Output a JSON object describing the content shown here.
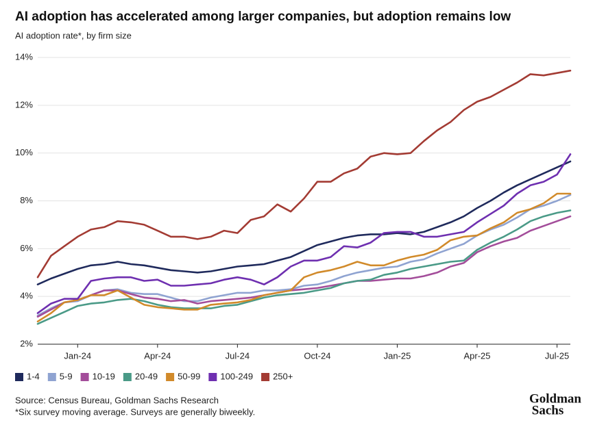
{
  "chart_data": {
    "type": "line",
    "title": "AI adoption has accelerated among larger companies, but adoption remains low",
    "subtitle": "AI adoption rate*, by firm size",
    "categories": [
      null,
      null,
      null,
      "Jan-24",
      null,
      null,
      null,
      null,
      null,
      "Apr-24",
      null,
      null,
      null,
      null,
      null,
      "Jul-24",
      null,
      null,
      null,
      null,
      null,
      "Oct-24",
      null,
      null,
      null,
      null,
      null,
      "Jan-25",
      null,
      null,
      null,
      null,
      null,
      "Apr-25",
      null,
      null,
      null,
      null,
      null,
      "Jul-25",
      null
    ],
    "series": [
      {
        "name": "1-4",
        "color": "#1f2a5c",
        "values": [
          4.5,
          4.75,
          4.95,
          5.15,
          5.3,
          5.35,
          5.45,
          5.35,
          5.3,
          5.2,
          5.1,
          5.05,
          5.0,
          5.05,
          5.15,
          5.25,
          5.3,
          5.35,
          5.5,
          5.65,
          5.9,
          6.15,
          6.3,
          6.45,
          6.55,
          6.6,
          6.6,
          6.65,
          6.6,
          6.7,
          6.9,
          7.1,
          7.35,
          7.7,
          8.0,
          8.35,
          8.65,
          8.9,
          9.15,
          9.4,
          9.65
        ]
      },
      {
        "name": "5-9",
        "color": "#8fa3d1",
        "values": [
          3.2,
          3.5,
          3.75,
          3.8,
          4.05,
          4.25,
          4.3,
          4.15,
          4.1,
          4.1,
          3.95,
          3.8,
          3.8,
          3.95,
          4.05,
          4.15,
          4.15,
          4.25,
          4.25,
          4.3,
          4.45,
          4.5,
          4.65,
          4.85,
          5.0,
          5.1,
          5.2,
          5.25,
          5.45,
          5.55,
          5.8,
          6.0,
          6.2,
          6.55,
          6.8,
          7.0,
          7.3,
          7.65,
          7.8,
          8.0,
          8.25
        ]
      },
      {
        "name": "10-19",
        "color": "#a34d9a",
        "values": [
          3.15,
          3.45,
          3.75,
          3.85,
          4.05,
          4.25,
          4.25,
          4.1,
          3.95,
          3.9,
          3.8,
          3.85,
          3.7,
          3.8,
          3.85,
          3.9,
          3.95,
          4.05,
          4.15,
          4.25,
          4.3,
          4.35,
          4.45,
          4.55,
          4.65,
          4.65,
          4.7,
          4.75,
          4.75,
          4.85,
          5.0,
          5.25,
          5.4,
          5.85,
          6.1,
          6.3,
          6.45,
          6.75,
          6.95,
          7.15,
          7.35
        ]
      },
      {
        "name": "20-49",
        "color": "#4a9a87",
        "values": [
          2.85,
          3.1,
          3.35,
          3.6,
          3.7,
          3.75,
          3.85,
          3.9,
          3.8,
          3.65,
          3.55,
          3.5,
          3.5,
          3.5,
          3.6,
          3.65,
          3.8,
          3.95,
          4.05,
          4.1,
          4.15,
          4.25,
          4.35,
          4.55,
          4.65,
          4.7,
          4.9,
          5.0,
          5.15,
          5.25,
          5.35,
          5.45,
          5.5,
          5.95,
          6.25,
          6.5,
          6.8,
          7.15,
          7.35,
          7.5,
          7.6
        ]
      },
      {
        "name": "50-99",
        "color": "#d18a2a",
        "values": [
          2.95,
          3.3,
          3.75,
          3.85,
          4.05,
          4.05,
          4.25,
          3.95,
          3.65,
          3.55,
          3.5,
          3.45,
          3.45,
          3.65,
          3.7,
          3.75,
          3.85,
          4.05,
          4.15,
          4.25,
          4.8,
          5.0,
          5.1,
          5.25,
          5.45,
          5.3,
          5.3,
          5.5,
          5.65,
          5.75,
          5.95,
          6.35,
          6.5,
          6.55,
          6.85,
          7.1,
          7.5,
          7.65,
          7.9,
          8.3,
          8.3
        ]
      },
      {
        "name": "100-249",
        "color": "#6e2fb0",
        "values": [
          3.3,
          3.7,
          3.9,
          3.9,
          4.65,
          4.75,
          4.8,
          4.8,
          4.65,
          4.7,
          4.45,
          4.45,
          4.5,
          4.55,
          4.7,
          4.8,
          4.7,
          4.5,
          4.8,
          5.25,
          5.5,
          5.5,
          5.65,
          6.1,
          6.05,
          6.25,
          6.65,
          6.7,
          6.7,
          6.5,
          6.5,
          6.6,
          6.7,
          7.1,
          7.45,
          7.8,
          8.3,
          8.65,
          8.8,
          9.1,
          9.95
        ]
      },
      {
        "name": "250+",
        "color": "#a33b33",
        "values": [
          4.8,
          5.7,
          6.1,
          6.5,
          6.8,
          6.9,
          7.15,
          7.1,
          7.0,
          6.75,
          6.5,
          6.5,
          6.4,
          6.5,
          6.75,
          6.65,
          7.2,
          7.35,
          7.85,
          7.55,
          8.1,
          8.8,
          8.8,
          9.15,
          9.35,
          9.85,
          10.0,
          9.95,
          10.0,
          10.5,
          10.95,
          11.3,
          11.8,
          12.15,
          12.35,
          12.65,
          12.95,
          13.3,
          13.25,
          13.35,
          13.45
        ]
      }
    ],
    "ylim": [
      2,
      14
    ],
    "yticks": [
      {
        "value": 2,
        "label": "2%"
      },
      {
        "value": 4,
        "label": "4%"
      },
      {
        "value": 6,
        "label": "6%"
      },
      {
        "value": 8,
        "label": "8%"
      },
      {
        "value": 10,
        "label": "10%"
      },
      {
        "value": 12,
        "label": "12%"
      },
      {
        "value": 14,
        "label": "14%"
      }
    ],
    "grid": true,
    "legend": "bottom"
  },
  "source": "Source: Census Bureau, Goldman Sachs Research",
  "note": "*Six survey moving average. Surveys are generally biweekly.",
  "logo": [
    "Goldman",
    "Sachs"
  ]
}
